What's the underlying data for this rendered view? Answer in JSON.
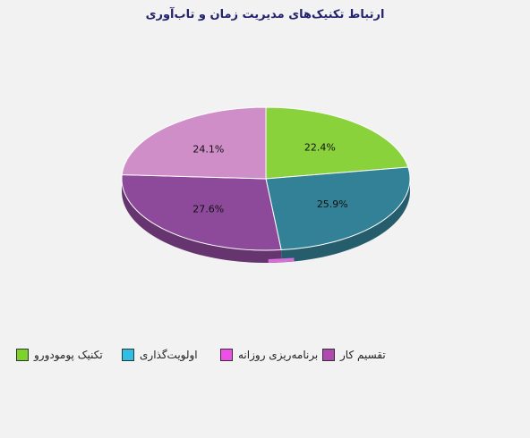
{
  "chart_data": {
    "type": "pie",
    "title": "ارتباط تکنیک‌های مدیریت زمان و تاب‌آوری",
    "slices": [
      {
        "label": "تکنیک پومودورو",
        "value": 22.4,
        "display": "22.4%",
        "color": "#8ad23c",
        "legend_color": "#7cd42a"
      },
      {
        "label": "اولویت‌گذاری",
        "value": 25.9,
        "display": "25.9%",
        "color": "#338196",
        "legend_color": "#2fbfe4"
      },
      {
        "label": "برنامه‌ریزی روزانه",
        "value": 0.0,
        "display": "",
        "color": "#d86fd8",
        "legend_color": "#f04ee8"
      },
      {
        "label": "تقسیم کار",
        "value": 27.6,
        "display": "27.6%",
        "color": "#8e4a9a",
        "legend_color": "#b04ab0"
      },
      {
        "label": "",
        "value": 24.1,
        "display": "24.1%",
        "color": "#cf8ec8",
        "legend_color": "#cf8ec8"
      }
    ],
    "legend_position": "bottom-left",
    "legend_entries": [
      "تکنیک پومودورو",
      "اولویت‌گذاری",
      "برنامه‌ریزی روزانه",
      "تقسیم کار"
    ]
  }
}
